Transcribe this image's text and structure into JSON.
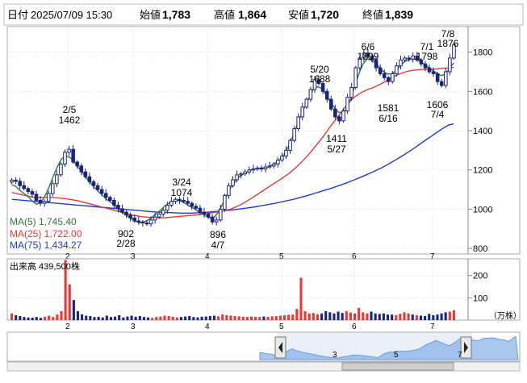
{
  "info_bar": {
    "date_label": "日付",
    "date_value": "2025/07/09 15:30",
    "open_label": "始値",
    "open_value": "1,783",
    "high_label": "高値",
    "high_value": "1,864",
    "low_label": "安値",
    "low_value": "1,720",
    "close_label": "終値",
    "close_value": "1,839"
  },
  "legend": {
    "ma5": "MA(5)    1,745.40",
    "ma25": "MA(25)  1,722.00",
    "ma75": "MA(75)  1,434.27"
  },
  "volume_panel": {
    "title": "出来高   439,500株",
    "unit": "（万株）"
  },
  "colors": {
    "candle_up": "#ffffff",
    "candle_down": "#1a237e",
    "ma5": "#2e7d32",
    "ma25": "#e53935",
    "ma75": "#1f3bd6",
    "volume_up": "#e53935",
    "volume_down": "#1a237e",
    "navigator_fill": "#a9c8f0"
  },
  "chart_data": [
    {
      "type": "candlestick",
      "y_ticks": [
        800,
        1000,
        1200,
        1400,
        1600,
        1800
      ],
      "ylim": [
        780,
        1930
      ],
      "x_month_labels": [
        "2",
        "3",
        "4",
        "5",
        "6",
        "7"
      ],
      "legend_position": "bottom-left",
      "series": [
        {
          "name": "MA(5)",
          "last_value": 1745.4
        },
        {
          "name": "MA(25)",
          "last_value": 1722.0
        },
        {
          "name": "MA(75)",
          "last_value": 1434.27
        }
      ],
      "annotations": [
        {
          "date": "2/5",
          "value": "1462"
        },
        {
          "date": "2/28",
          "value": "902"
        },
        {
          "date": "3/24",
          "value": "1074"
        },
        {
          "date": "4/7",
          "value": "896"
        },
        {
          "date": "5/20",
          "value": "1688"
        },
        {
          "date": "5/27",
          "value": "1411"
        },
        {
          "date": "6/6",
          "value": "1809"
        },
        {
          "date": "6/16",
          "value": "1581"
        },
        {
          "date": "7/1",
          "value": "1798"
        },
        {
          "date": "7/4",
          "value": "1606"
        },
        {
          "date": "7/8",
          "value": "1876"
        }
      ],
      "approx_closes": [
        1148,
        1142,
        1120,
        1105,
        1090,
        1076,
        1045,
        1030,
        1040,
        1080,
        1130,
        1175,
        1230,
        1290,
        1305,
        1240,
        1220,
        1190,
        1165,
        1140,
        1120,
        1100,
        1080,
        1060,
        1045,
        1020,
        1002,
        985,
        970,
        955,
        940,
        935,
        930,
        925,
        945,
        960,
        975,
        995,
        1020,
        1040,
        1050,
        1045,
        1040,
        1030,
        1015,
        1005,
        985,
        975,
        960,
        935,
        945,
        1000,
        1070,
        1120,
        1150,
        1175,
        1180,
        1190,
        1200,
        1205,
        1210,
        1205,
        1215,
        1220,
        1230,
        1250,
        1270,
        1300,
        1350,
        1410,
        1470,
        1520,
        1560,
        1610,
        1660,
        1640,
        1600,
        1560,
        1510,
        1470,
        1450,
        1500,
        1570,
        1620,
        1720,
        1770,
        1795,
        1780,
        1760,
        1720,
        1690,
        1670,
        1650,
        1690,
        1730,
        1760,
        1770,
        1765,
        1780,
        1760,
        1740,
        1720,
        1700,
        1690,
        1650,
        1630,
        1700,
        1770,
        1839
      ],
      "approx_ma5": [
        1125,
        1115,
        1095,
        1080,
        1064,
        1040,
        1025,
        1035,
        1065,
        1110,
        1165,
        1215,
        1255,
        1270,
        1265,
        1245,
        1215,
        1190,
        1160,
        1135,
        1110,
        1090,
        1070,
        1050,
        1035,
        1015,
        995,
        980,
        965,
        950,
        938,
        930,
        935,
        945,
        960,
        978,
        995,
        1015,
        1030,
        1040,
        1045,
        1040,
        1030,
        1015,
        1005,
        990,
        978,
        965,
        955,
        960,
        985,
        1025,
        1070,
        1110,
        1140,
        1165,
        1178,
        1190,
        1200,
        1205,
        1207,
        1210,
        1215,
        1225,
        1238,
        1255,
        1282,
        1320,
        1370,
        1425,
        1480,
        1525,
        1570,
        1610,
        1625,
        1615,
        1585,
        1550,
        1520,
        1495,
        1490,
        1510,
        1560,
        1630,
        1690,
        1740,
        1765,
        1760,
        1745,
        1720,
        1700,
        1688,
        1690,
        1705,
        1730,
        1750,
        1760,
        1765,
        1762,
        1750,
        1735,
        1720,
        1705,
        1690,
        1680,
        1690,
        1720,
        1745
      ],
      "approx_ma25": [
        1085,
        1080,
        1075,
        1070,
        1065,
        1060,
        1060,
        1060,
        1060,
        1060,
        1058,
        1056,
        1054,
        1050,
        1046,
        1042,
        1036,
        1030,
        1024,
        1018,
        1012,
        1006,
        1000,
        994,
        988,
        982,
        976,
        970,
        966,
        962,
        960,
        958,
        956,
        956,
        956,
        958,
        960,
        962,
        964,
        966,
        968,
        970,
        972,
        975,
        978,
        982,
        986,
        990,
        995,
        1000,
        1010,
        1020,
        1032,
        1046,
        1060,
        1075,
        1090,
        1105,
        1120,
        1135,
        1150,
        1165,
        1180,
        1200,
        1220,
        1242,
        1266,
        1292,
        1320,
        1348,
        1378,
        1410,
        1440,
        1470,
        1500,
        1530,
        1555,
        1575,
        1590,
        1602,
        1612,
        1620,
        1630,
        1642,
        1655,
        1668,
        1680,
        1690,
        1698,
        1704,
        1708,
        1710,
        1712,
        1712,
        1712,
        1714,
        1716,
        1718,
        1720,
        1722
      ],
      "approx_ma75": [
        1050,
        1048,
        1046,
        1044,
        1042,
        1040,
        1038,
        1036,
        1034,
        1032,
        1030,
        1028,
        1026,
        1024,
        1022,
        1020,
        1018,
        1016,
        1014,
        1012,
        1010,
        1008,
        1006,
        1004,
        1002,
        1000,
        998,
        996,
        994,
        992,
        990,
        988,
        986,
        985,
        984,
        983,
        982,
        981,
        980,
        980,
        980,
        981,
        982,
        983,
        985,
        987,
        989,
        991,
        993,
        995,
        998,
        1001,
        1004,
        1007,
        1010,
        1014,
        1018,
        1022,
        1026,
        1030,
        1035,
        1040,
        1045,
        1050,
        1056,
        1062,
        1068,
        1075,
        1082,
        1089,
        1096,
        1103,
        1110,
        1118,
        1126,
        1134,
        1143,
        1152,
        1161,
        1171,
        1181,
        1191,
        1202,
        1213,
        1225,
        1238,
        1251,
        1265,
        1279,
        1294,
        1309,
        1325,
        1341,
        1357,
        1372,
        1388,
        1403,
        1418,
        1430,
        1434
      ]
    },
    {
      "type": "bar",
      "title": "出来高   439,500株",
      "y_ticks": [
        100,
        200
      ],
      "ylim": [
        0,
        275
      ],
      "unit": "（万株）",
      "x_month_labels": [
        "2",
        "3",
        "4",
        "5",
        "6",
        "7"
      ],
      "values": [
        30,
        22,
        18,
        14,
        12,
        11,
        14,
        10,
        15,
        20,
        14,
        25,
        40,
        270,
        160,
        90,
        40,
        26,
        20,
        18,
        14,
        15,
        12,
        20,
        14,
        16,
        22,
        12,
        16,
        20,
        15,
        18,
        14,
        12,
        10,
        14,
        16,
        20,
        18,
        15,
        12,
        14,
        16,
        18,
        14,
        12,
        15,
        16,
        18,
        20,
        17,
        26,
        22,
        20,
        18,
        17,
        15,
        14,
        16,
        15,
        14,
        16,
        15,
        17,
        18,
        20,
        22,
        24,
        25,
        50,
        190,
        40,
        30,
        32,
        26,
        30,
        40,
        35,
        30,
        38,
        32,
        40,
        34,
        30,
        55,
        35,
        30,
        38,
        30,
        28,
        30,
        25,
        25,
        22,
        28,
        35,
        30,
        25,
        22,
        20,
        18,
        28,
        22,
        25,
        30,
        35,
        38,
        44
      ]
    }
  ],
  "navigator": {
    "month_labels": [
      "3",
      "5",
      "7"
    ]
  }
}
